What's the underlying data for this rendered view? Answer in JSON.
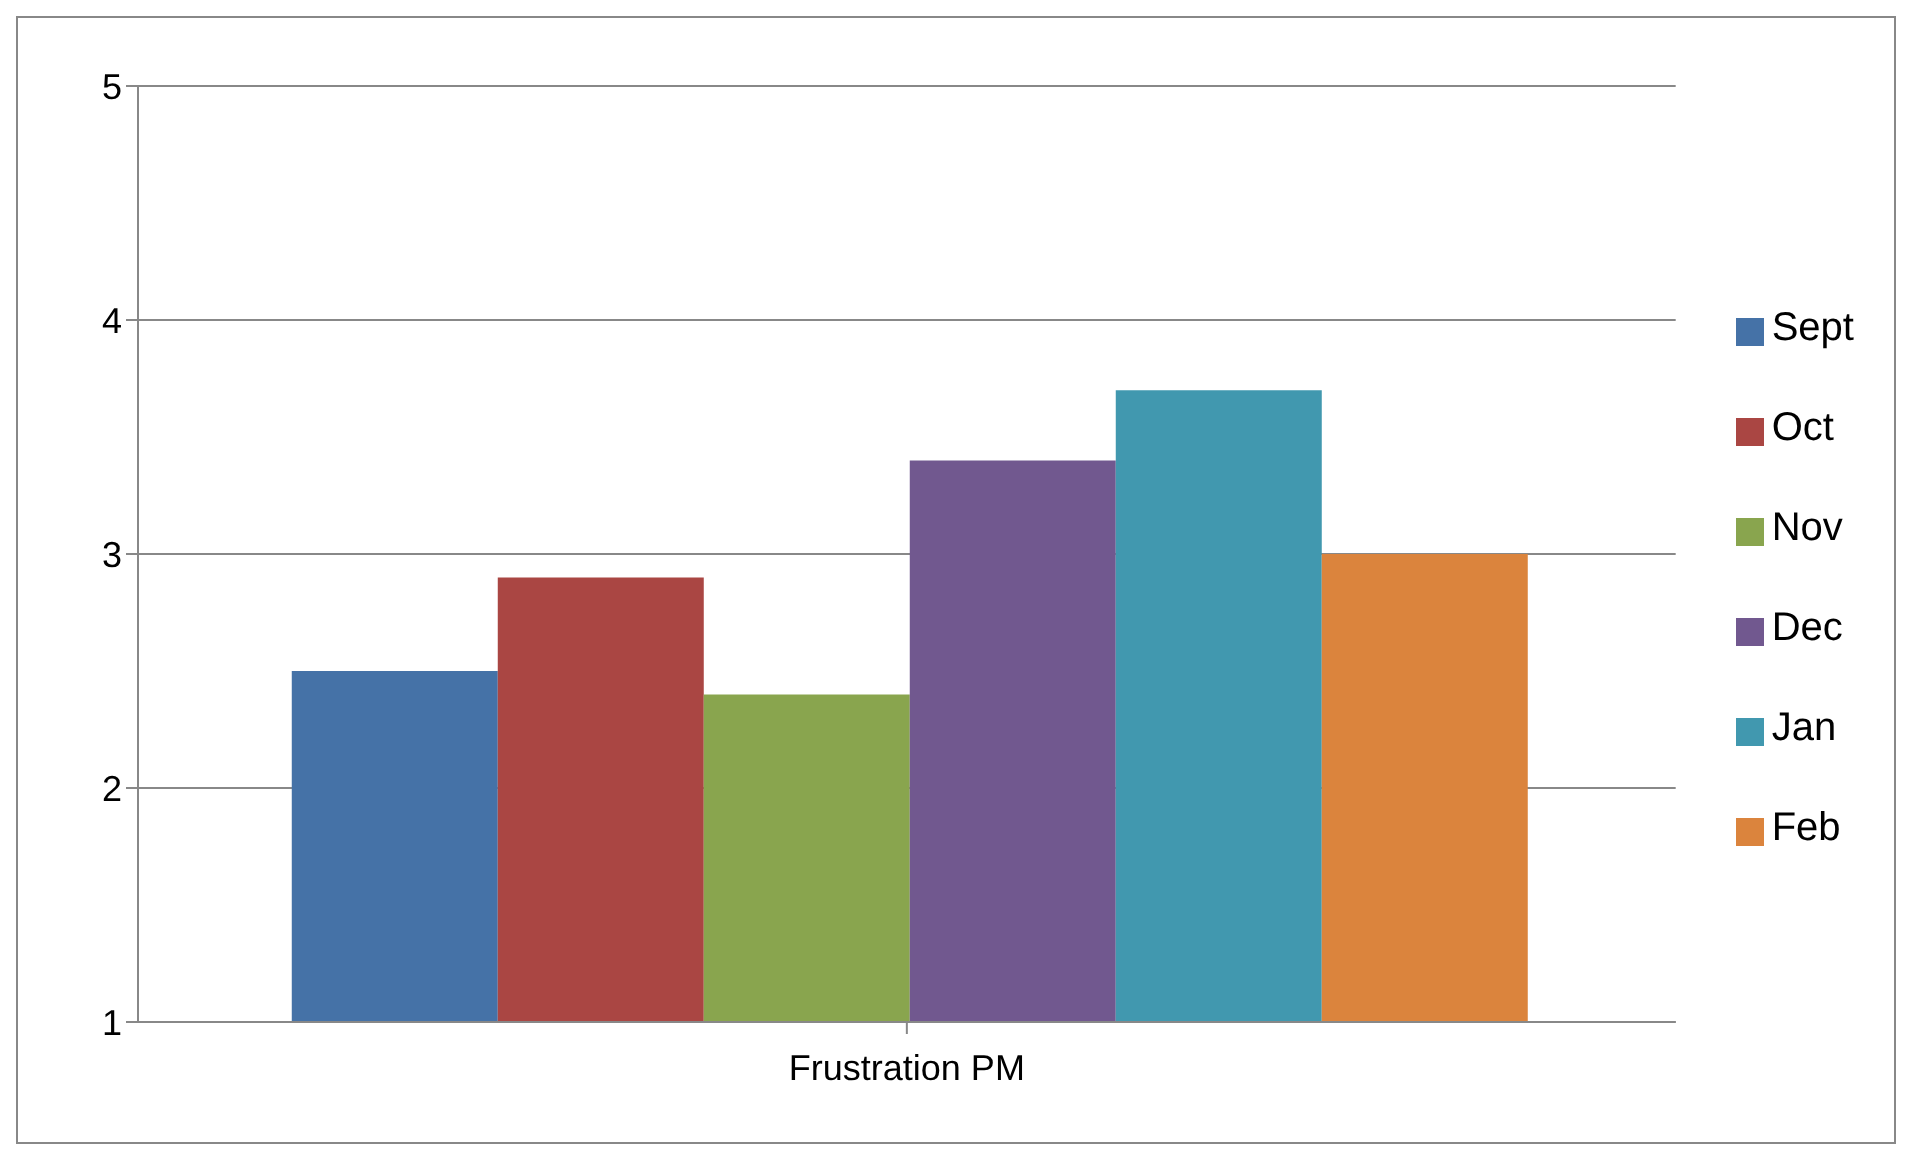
{
  "chart_data": {
    "type": "bar",
    "categories": [
      "Frustration PM"
    ],
    "series": [
      {
        "name": "Sept",
        "color": "#4572a7",
        "values": [
          2.5
        ]
      },
      {
        "name": "Oct",
        "color": "#aa4643",
        "values": [
          2.9
        ]
      },
      {
        "name": "Nov",
        "color": "#89a54e",
        "values": [
          2.4
        ]
      },
      {
        "name": "Dec",
        "color": "#71588f",
        "values": [
          3.4
        ]
      },
      {
        "name": "Jan",
        "color": "#4198af",
        "values": [
          3.7
        ]
      },
      {
        "name": "Feb",
        "color": "#db843d",
        "values": [
          3.0
        ]
      }
    ],
    "ylim": [
      1,
      5
    ],
    "yticks": [
      1,
      2,
      3,
      4,
      5
    ],
    "grid": "y",
    "legend": "right"
  }
}
